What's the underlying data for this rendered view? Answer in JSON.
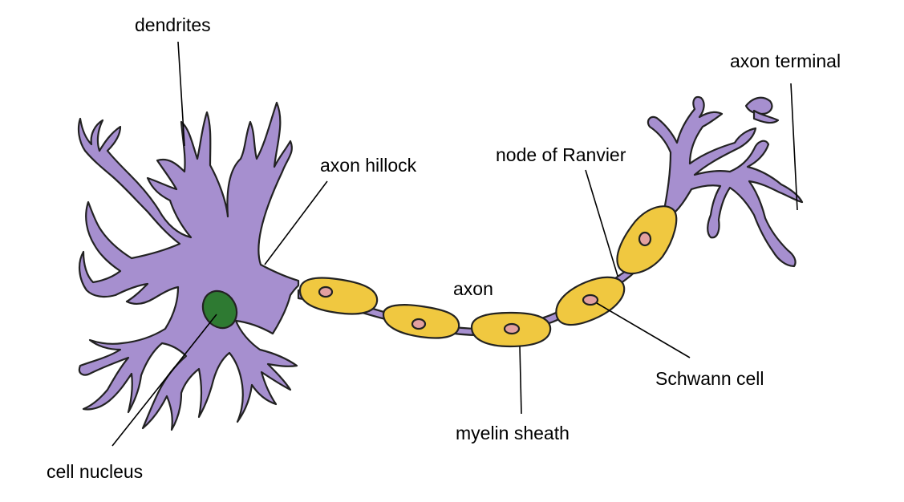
{
  "labels": {
    "dendrites": "dendrites",
    "axon_terminal": "axon terminal",
    "axon_hillock": "axon hillock",
    "node_of_ranvier": "node of Ranvier",
    "axon": "axon",
    "schwann_cell": "Schwann cell",
    "myelin_sheath": "myelin sheath",
    "cell_nucleus": "cell nucleus"
  },
  "colors": {
    "neuron_body": "#a68fcf",
    "myelin": "#f0c840",
    "schwann_nucleus": "#e3a0a0",
    "cell_nucleus": "#2e7a32",
    "outline": "#222222"
  }
}
